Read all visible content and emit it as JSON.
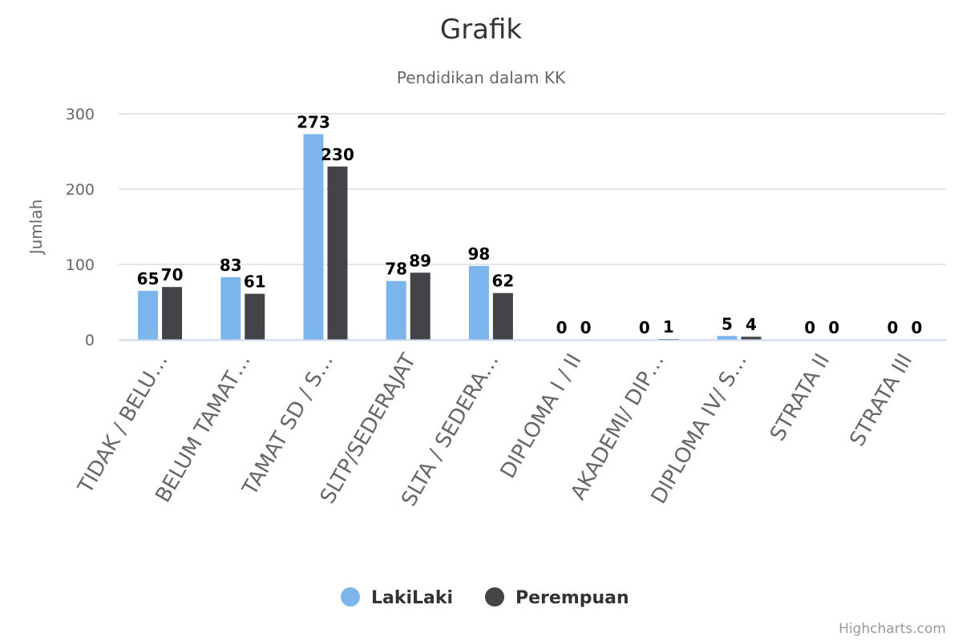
{
  "chart_data": {
    "type": "bar",
    "title": "Grafik",
    "subtitle": "Pendidikan dalam KK",
    "xlabel": "",
    "ylabel": "Jumlah",
    "ylim": [
      0,
      300
    ],
    "yticks": [
      "0",
      "100",
      "200",
      "300"
    ],
    "categories": [
      "TIDAK / BELU…",
      "BELUM TAMAT…",
      "TAMAT SD / S…",
      "SLTP/SEDERAJAT",
      "SLTA / SEDERA…",
      "DIPLOMA I / II",
      "AKADEMI/ DIP…",
      "DIPLOMA IV/ S…",
      "STRATA II",
      "STRATA III"
    ],
    "series": [
      {
        "name": "LakiLaki",
        "color": "#7cb5ec",
        "values": [
          65,
          83,
          273,
          78,
          98,
          0,
          0,
          5,
          0,
          0
        ]
      },
      {
        "name": "Perempuan",
        "color": "#434348",
        "values": [
          70,
          61,
          230,
          89,
          62,
          0,
          1,
          4,
          0,
          0
        ]
      }
    ],
    "grid": true,
    "legend_position": "bottom-center",
    "credits": "Highcharts.com"
  }
}
